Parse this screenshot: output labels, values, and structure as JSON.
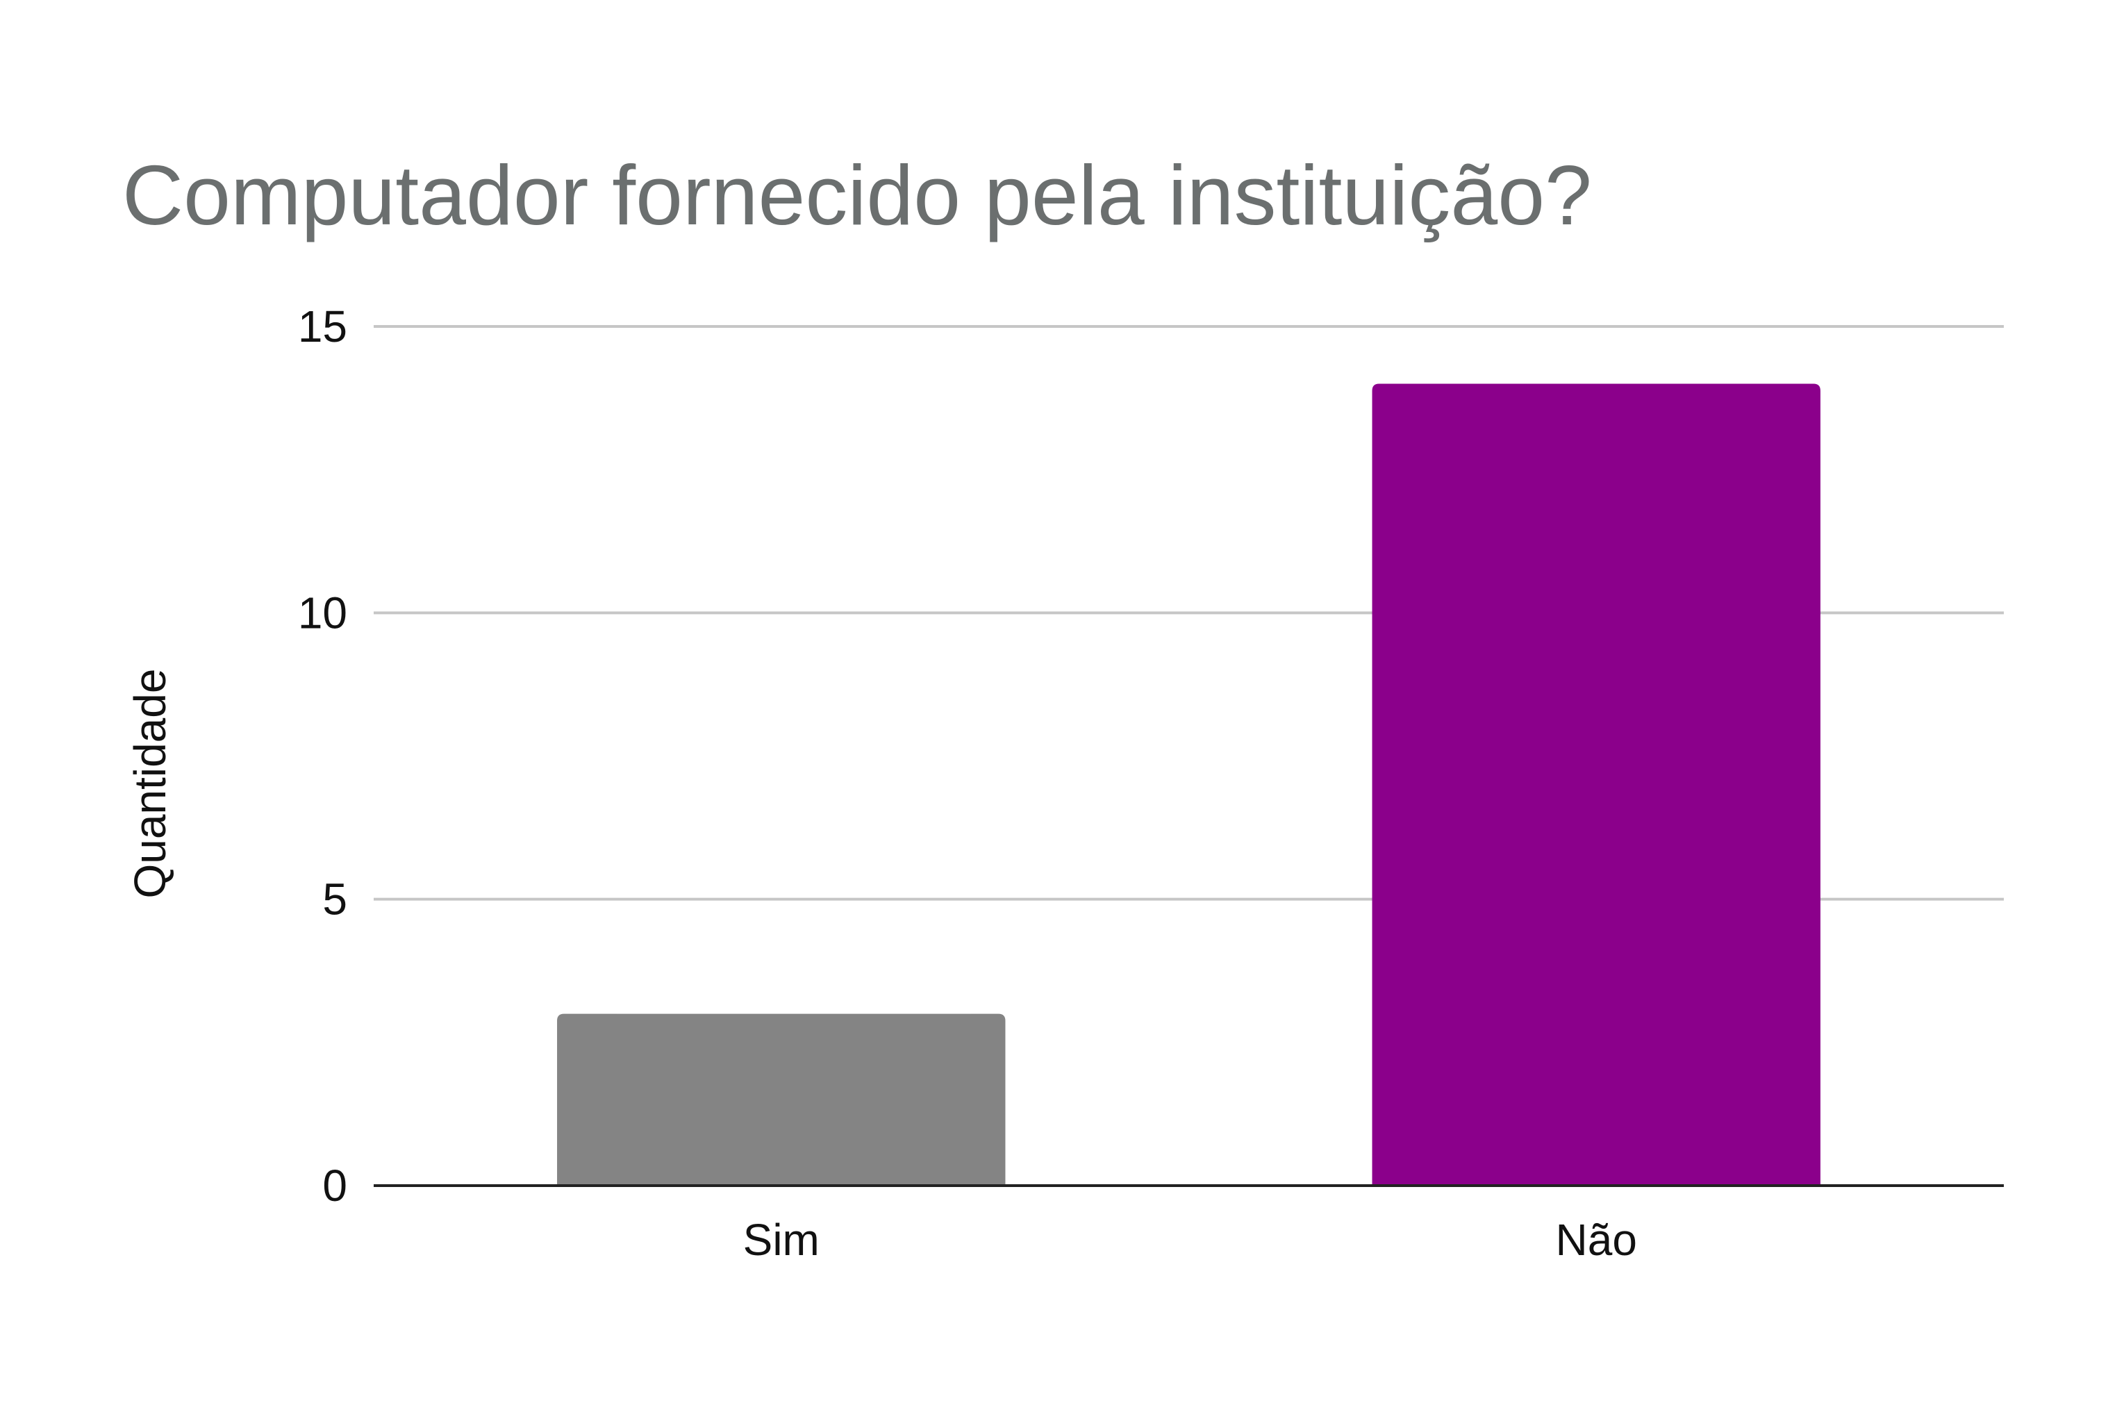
{
  "chart_data": {
    "type": "bar",
    "title": "Computador fornecido pela instituição?",
    "xlabel": "",
    "ylabel": "Quantidade",
    "categories": [
      "Sim",
      "Não"
    ],
    "values": [
      3,
      14
    ],
    "bar_colors": [
      "#848484",
      "#8b008b"
    ],
    "ylim": [
      0,
      15
    ],
    "yticks": [
      0,
      5,
      10,
      15
    ],
    "grid": true,
    "legend": "none"
  },
  "colors": {
    "title": "#6b6f6f",
    "gridline": "#c6c6c6",
    "axis": "#222222",
    "tick_text": "#111111"
  }
}
